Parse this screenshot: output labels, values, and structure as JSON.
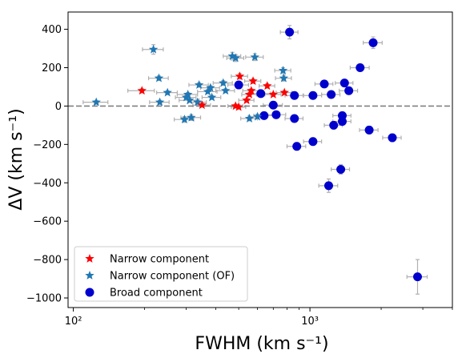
{
  "chart_data": {
    "type": "scatter",
    "xlabel": "FWHM (km s⁻¹)",
    "ylabel": "ΔV (km s⁻¹)",
    "xscale": "log",
    "xlim": [
      95,
      4000
    ],
    "ylim": [
      -1050,
      490
    ],
    "xticks": [
      {
        "value": 100,
        "label": "10²"
      },
      {
        "value": 1000,
        "label": "10³"
      }
    ],
    "yticks": [
      400,
      200,
      0,
      -200,
      -400,
      -600,
      -800,
      -1000
    ],
    "ytick_labels": [
      "400",
      "200",
      "0",
      "−200",
      "−400",
      "−600",
      "−800",
      "−1000"
    ],
    "reference_line": {
      "y": 0,
      "style": "dashed",
      "color": "#808080"
    },
    "legend_position": "lower-left",
    "series": [
      {
        "name": "Narrow component",
        "marker": "star",
        "color": "#ff0000",
        "points": [
          {
            "x": 195,
            "y": 80,
            "xerr": 25,
            "yerr": 10
          },
          {
            "x": 505,
            "y": 155,
            "xerr": 40,
            "yerr": 15
          },
          {
            "x": 575,
            "y": 130,
            "xerr": 45,
            "yerr": 12
          },
          {
            "x": 555,
            "y": 60,
            "xerr": 40,
            "yerr": 10
          },
          {
            "x": 540,
            "y": 30,
            "xerr": 40,
            "yerr": 10
          },
          {
            "x": 565,
            "y": 80,
            "xerr": 45,
            "yerr": 10
          },
          {
            "x": 485,
            "y": 0,
            "xerr": 35,
            "yerr": 10
          },
          {
            "x": 500,
            "y": -5,
            "xerr": 35,
            "yerr": 10
          },
          {
            "x": 660,
            "y": 105,
            "xerr": 50,
            "yerr": 12
          },
          {
            "x": 700,
            "y": 60,
            "xerr": 55,
            "yerr": 10
          },
          {
            "x": 780,
            "y": 70,
            "xerr": 60,
            "yerr": 10
          },
          {
            "x": 350,
            "y": 5,
            "xerr": 30,
            "yerr": 10
          }
        ]
      },
      {
        "name": "Narrow component (OF)",
        "marker": "star",
        "color": "#1f77b4",
        "points": [
          {
            "x": 125,
            "y": 20,
            "xerr": 15,
            "yerr": 8
          },
          {
            "x": 218,
            "y": 295,
            "xerr": 22,
            "yerr": 25
          },
          {
            "x": 230,
            "y": 145,
            "xerr": 22,
            "yerr": 12
          },
          {
            "x": 232,
            "y": 20,
            "xerr": 22,
            "yerr": 10
          },
          {
            "x": 250,
            "y": 70,
            "xerr": 25,
            "yerr": 10
          },
          {
            "x": 295,
            "y": -70,
            "xerr": 28,
            "yerr": 15
          },
          {
            "x": 300,
            "y": 45,
            "xerr": 30,
            "yerr": 10
          },
          {
            "x": 305,
            "y": 60,
            "xerr": 30,
            "yerr": 10
          },
          {
            "x": 310,
            "y": 30,
            "xerr": 30,
            "yerr": 10
          },
          {
            "x": 315,
            "y": -60,
            "xerr": 30,
            "yerr": 15
          },
          {
            "x": 340,
            "y": 110,
            "xerr": 32,
            "yerr": 12
          },
          {
            "x": 335,
            "y": 20,
            "xerr": 30,
            "yerr": 10
          },
          {
            "x": 370,
            "y": 75,
            "xerr": 35,
            "yerr": 10
          },
          {
            "x": 380,
            "y": 95,
            "xerr": 35,
            "yerr": 10
          },
          {
            "x": 385,
            "y": 45,
            "xerr": 35,
            "yerr": 10
          },
          {
            "x": 430,
            "y": 120,
            "xerr": 40,
            "yerr": 12
          },
          {
            "x": 440,
            "y": 80,
            "xerr": 40,
            "yerr": 10
          },
          {
            "x": 470,
            "y": 260,
            "xerr": 40,
            "yerr": 20
          },
          {
            "x": 485,
            "y": 250,
            "xerr": 40,
            "yerr": 18
          },
          {
            "x": 555,
            "y": -65,
            "xerr": 45,
            "yerr": 12
          },
          {
            "x": 585,
            "y": 255,
            "xerr": 50,
            "yerr": 18
          },
          {
            "x": 600,
            "y": -55,
            "xerr": 50,
            "yerr": 12
          },
          {
            "x": 770,
            "y": 185,
            "xerr": 60,
            "yerr": 15
          },
          {
            "x": 775,
            "y": 145,
            "xerr": 60,
            "yerr": 15
          }
        ]
      },
      {
        "name": "Broad component",
        "marker": "circle",
        "color": "#0000cd",
        "points": [
          {
            "x": 500,
            "y": 110,
            "xerr": 50,
            "yerr": 15
          },
          {
            "x": 620,
            "y": 65,
            "xerr": 60,
            "yerr": 15
          },
          {
            "x": 640,
            "y": -50,
            "xerr": 60,
            "yerr": 15
          },
          {
            "x": 700,
            "y": 5,
            "xerr": 65,
            "yerr": 15
          },
          {
            "x": 720,
            "y": -45,
            "xerr": 70,
            "yerr": 15
          },
          {
            "x": 820,
            "y": 385,
            "xerr": 70,
            "yerr": 35
          },
          {
            "x": 860,
            "y": 55,
            "xerr": 75,
            "yerr": 12
          },
          {
            "x": 860,
            "y": -65,
            "xerr": 75,
            "yerr": 15
          },
          {
            "x": 880,
            "y": -210,
            "xerr": 80,
            "yerr": 20
          },
          {
            "x": 1030,
            "y": 55,
            "xerr": 90,
            "yerr": 12
          },
          {
            "x": 1030,
            "y": -185,
            "xerr": 90,
            "yerr": 20
          },
          {
            "x": 1150,
            "y": 115,
            "xerr": 100,
            "yerr": 15
          },
          {
            "x": 1200,
            "y": -415,
            "xerr": 110,
            "yerr": 35
          },
          {
            "x": 1230,
            "y": 60,
            "xerr": 110,
            "yerr": 12
          },
          {
            "x": 1260,
            "y": -100,
            "xerr": 110,
            "yerr": 20
          },
          {
            "x": 1350,
            "y": -330,
            "xerr": 120,
            "yerr": 25
          },
          {
            "x": 1370,
            "y": -50,
            "xerr": 120,
            "yerr": 15
          },
          {
            "x": 1370,
            "y": -80,
            "xerr": 120,
            "yerr": 15
          },
          {
            "x": 1400,
            "y": 120,
            "xerr": 120,
            "yerr": 15
          },
          {
            "x": 1460,
            "y": 80,
            "xerr": 130,
            "yerr": 15
          },
          {
            "x": 1630,
            "y": 200,
            "xerr": 150,
            "yerr": 15
          },
          {
            "x": 1780,
            "y": -125,
            "xerr": 160,
            "yerr": 20
          },
          {
            "x": 1850,
            "y": 330,
            "xerr": 170,
            "yerr": 30
          },
          {
            "x": 2230,
            "y": -165,
            "xerr": 200,
            "yerr": 20
          },
          {
            "x": 2850,
            "y": -890,
            "xerr": 280,
            "yerr": 90
          }
        ]
      }
    ]
  }
}
